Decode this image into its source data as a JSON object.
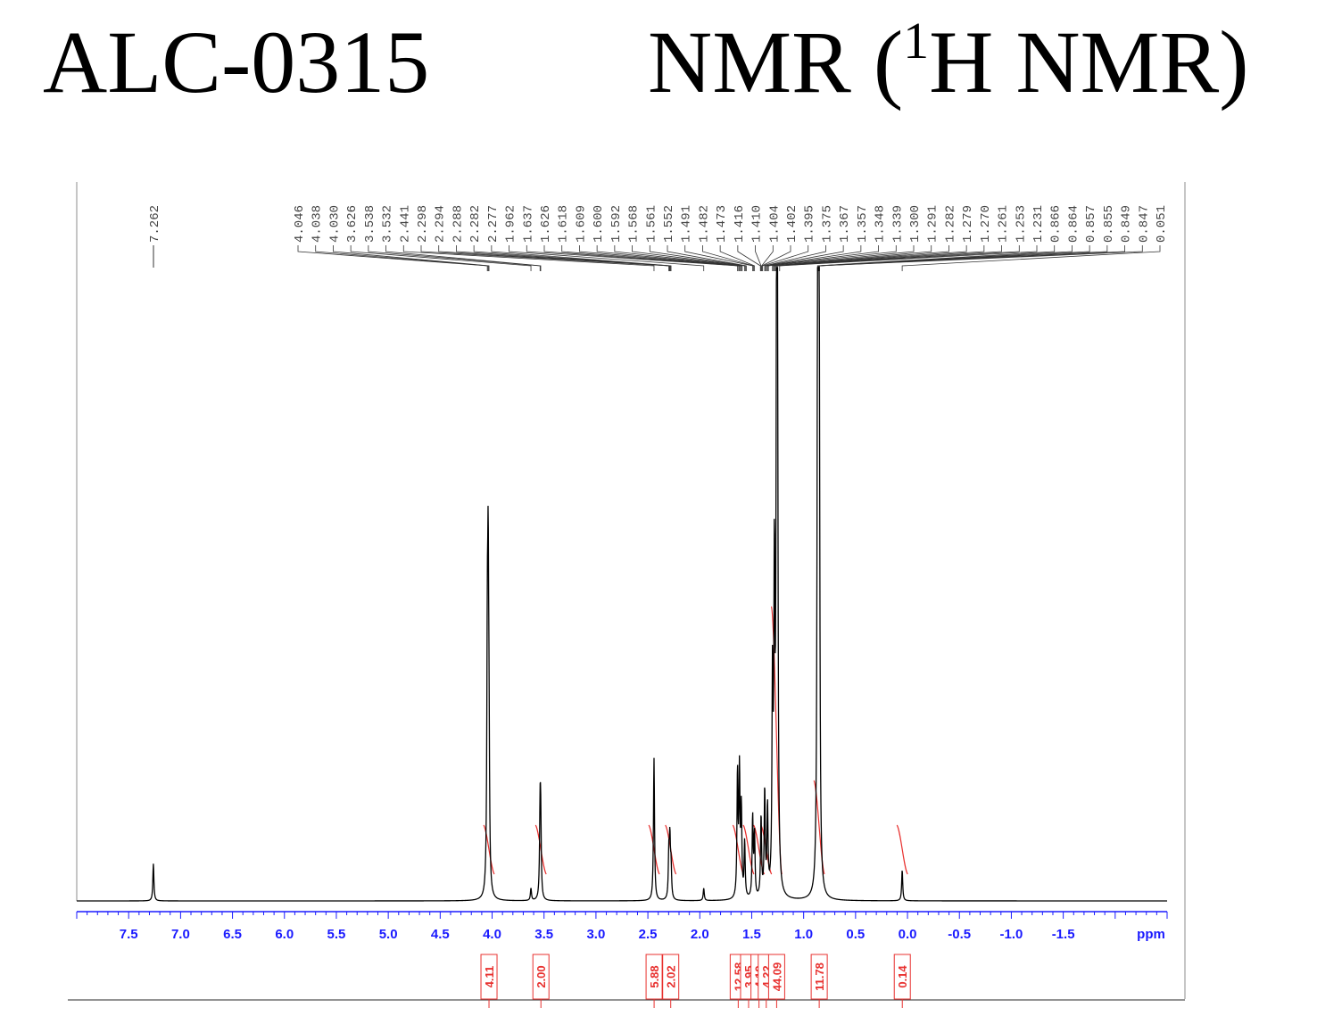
{
  "header": {
    "compound_id": "ALC-0315",
    "technique_prefix": "NMR (",
    "technique_sup": "1",
    "technique_suffix": "H NMR)"
  },
  "colors": {
    "spectrum": "#000000",
    "axis": "#1a1aff",
    "integral": "#e8312f",
    "frame": "#8c8c8c"
  },
  "chart_data": {
    "type": "line",
    "title": "",
    "xlabel": "ppm",
    "ylabel": "",
    "x_direction": "descending",
    "xlim": [
      8.0,
      -2.5
    ],
    "x_ticks": [
      "7.5",
      "7.0",
      "6.5",
      "6.0",
      "5.5",
      "5.0",
      "4.5",
      "4.0",
      "3.5",
      "3.0",
      "2.5",
      "2.0",
      "1.5",
      "1.0",
      "0.5",
      "0.0",
      "-0.5",
      "-1.0",
      "-1.5"
    ],
    "peak_labels": [
      "7.262",
      "4.046",
      "4.038",
      "4.030",
      "3.626",
      "3.538",
      "3.532",
      "2.441",
      "2.298",
      "2.294",
      "2.288",
      "2.282",
      "2.277",
      "1.962",
      "1.637",
      "1.626",
      "1.618",
      "1.609",
      "1.600",
      "1.592",
      "1.568",
      "1.561",
      "1.552",
      "1.491",
      "1.482",
      "1.473",
      "1.416",
      "1.410",
      "1.404",
      "1.402",
      "1.395",
      "1.375",
      "1.367",
      "1.357",
      "1.348",
      "1.339",
      "1.300",
      "1.291",
      "1.282",
      "1.279",
      "1.270",
      "1.261",
      "1.253",
      "1.231",
      "0.866",
      "0.864",
      "0.857",
      "0.855",
      "0.849",
      "0.847",
      "0.051"
    ],
    "peaks": [
      {
        "ppm": 7.262,
        "height": 0.06
      },
      {
        "ppm": 4.046,
        "height": 0.35
      },
      {
        "ppm": 4.038,
        "height": 0.44
      },
      {
        "ppm": 4.03,
        "height": 0.2
      },
      {
        "ppm": 3.626,
        "height": 0.02
      },
      {
        "ppm": 3.538,
        "height": 0.13
      },
      {
        "ppm": 3.532,
        "height": 0.11
      },
      {
        "ppm": 2.441,
        "height": 0.23
      },
      {
        "ppm": 2.298,
        "height": 0.07
      },
      {
        "ppm": 2.288,
        "height": 0.09
      },
      {
        "ppm": 2.277,
        "height": 0.05
      },
      {
        "ppm": 1.962,
        "height": 0.02
      },
      {
        "ppm": 1.637,
        "height": 0.2
      },
      {
        "ppm": 1.618,
        "height": 0.2
      },
      {
        "ppm": 1.6,
        "height": 0.14
      },
      {
        "ppm": 1.568,
        "height": 0.09
      },
      {
        "ppm": 1.491,
        "height": 0.13
      },
      {
        "ppm": 1.473,
        "height": 0.1
      },
      {
        "ppm": 1.41,
        "height": 0.13
      },
      {
        "ppm": 1.375,
        "height": 0.17
      },
      {
        "ppm": 1.348,
        "height": 0.14
      },
      {
        "ppm": 1.3,
        "height": 0.33
      },
      {
        "ppm": 1.282,
        "height": 0.5
      },
      {
        "ppm": 1.261,
        "height": 0.7
      },
      {
        "ppm": 1.253,
        "height": 1.0
      },
      {
        "ppm": 0.866,
        "height": 0.75
      },
      {
        "ppm": 0.857,
        "height": 0.82
      },
      {
        "ppm": 0.849,
        "height": 0.6
      },
      {
        "ppm": 0.051,
        "height": 0.05
      }
    ],
    "integrals": [
      {
        "label": "4.11",
        "ppm": 4.03
      },
      {
        "label": "2.00",
        "ppm": 3.53
      },
      {
        "label": "5.88",
        "ppm": 2.44
      },
      {
        "label": "2.02",
        "ppm": 2.28
      },
      {
        "label": "12.58",
        "ppm": 1.63
      },
      {
        "label": "3.95",
        "ppm": 1.53
      },
      {
        "label": "4.19",
        "ppm": 1.43
      },
      {
        "label": "4.22",
        "ppm": 1.36
      },
      {
        "label": "44.09",
        "ppm": 1.26
      },
      {
        "label": "11.78",
        "ppm": 0.85
      },
      {
        "label": "0.14",
        "ppm": 0.05
      }
    ]
  }
}
